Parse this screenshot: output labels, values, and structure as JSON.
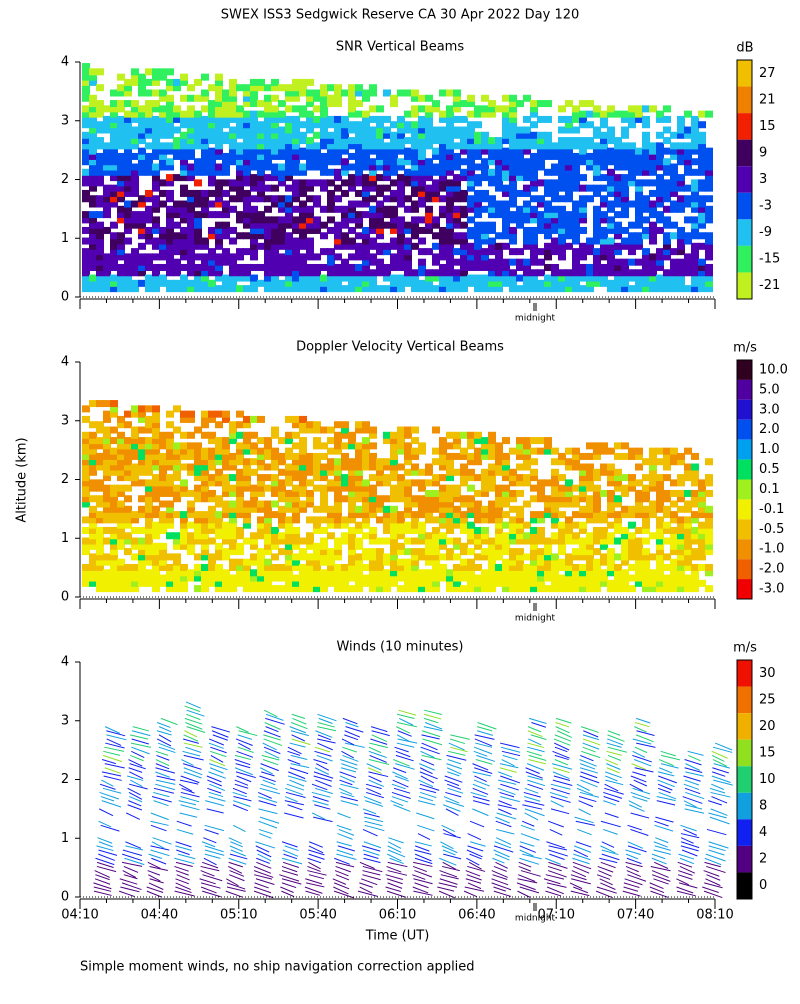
{
  "title": "SWEX ISS3 Sedgwick Reserve CA  30 Apr 2022 Day 120",
  "y_axis_label": "Altitude (km)",
  "footnote": "Simple moment winds, no ship navigation correction applied",
  "chart_data": [
    {
      "type": "heatmap",
      "title": "SNR Vertical Beams",
      "annotation": "midnight",
      "ylim": [
        0,
        4
      ],
      "yticks": [
        0,
        1,
        2,
        3,
        4
      ],
      "colorbar": {
        "label": "dB",
        "ticks": [
          27,
          21,
          15,
          9,
          3,
          -3,
          -9,
          -15,
          -21
        ],
        "colors": [
          "#f0c000",
          "#f08000",
          "#f02000",
          "#400060",
          "#5000b0",
          "#0050f0",
          "#20c0f0",
          "#30f060",
          "#c0f020"
        ]
      }
    },
    {
      "type": "heatmap",
      "title": "Doppler Velocity Vertical Beams",
      "annotation": "midnight",
      "ylim": [
        0,
        4
      ],
      "yticks": [
        0,
        1,
        2,
        3,
        4
      ],
      "colorbar": {
        "label": "m/s",
        "ticks": [
          {
            "value": 10,
            "label": "10.0"
          },
          {
            "value": 5,
            "label": "5.0"
          },
          {
            "value": 3,
            "label": "3.0"
          },
          {
            "value": 2,
            "label": "2.0"
          },
          {
            "value": 1,
            "label": "1.0"
          },
          0.5,
          0.1,
          -0.1,
          -0.5,
          {
            "value": -1,
            "label": "-1.0"
          },
          {
            "value": -2,
            "label": "-2.0"
          },
          {
            "value": -3,
            "label": "-3.0"
          }
        ],
        "colors": [
          "#300020",
          "#5000a0",
          "#2010d0",
          "#0050f0",
          "#00a0f0",
          "#00e060",
          "#a0f020",
          "#f0f000",
          "#f0c000",
          "#f09000",
          "#f06000",
          "#f00000"
        ]
      }
    },
    {
      "type": "barbs",
      "title": "Winds (10 minutes)",
      "annotation": "midnight",
      "ylim": [
        0,
        4
      ],
      "yticks": [
        0,
        1,
        2,
        3,
        4
      ],
      "x_axis_label": "Time (UT)",
      "xticks": [
        "04:10",
        "04:40",
        "05:10",
        "05:40",
        "06:10",
        "06:40",
        "07:10",
        "07:40",
        "08:10"
      ],
      "colorbar": {
        "label": "m/s",
        "ticks": [
          30,
          25,
          20,
          15,
          10,
          8,
          4,
          2,
          0
        ],
        "colors": [
          "#f01000",
          "#f07000",
          "#f0b000",
          "#90e020",
          "#20d070",
          "#10a0e0",
          "#1020f0",
          "#500080",
          "#000000"
        ]
      }
    }
  ]
}
